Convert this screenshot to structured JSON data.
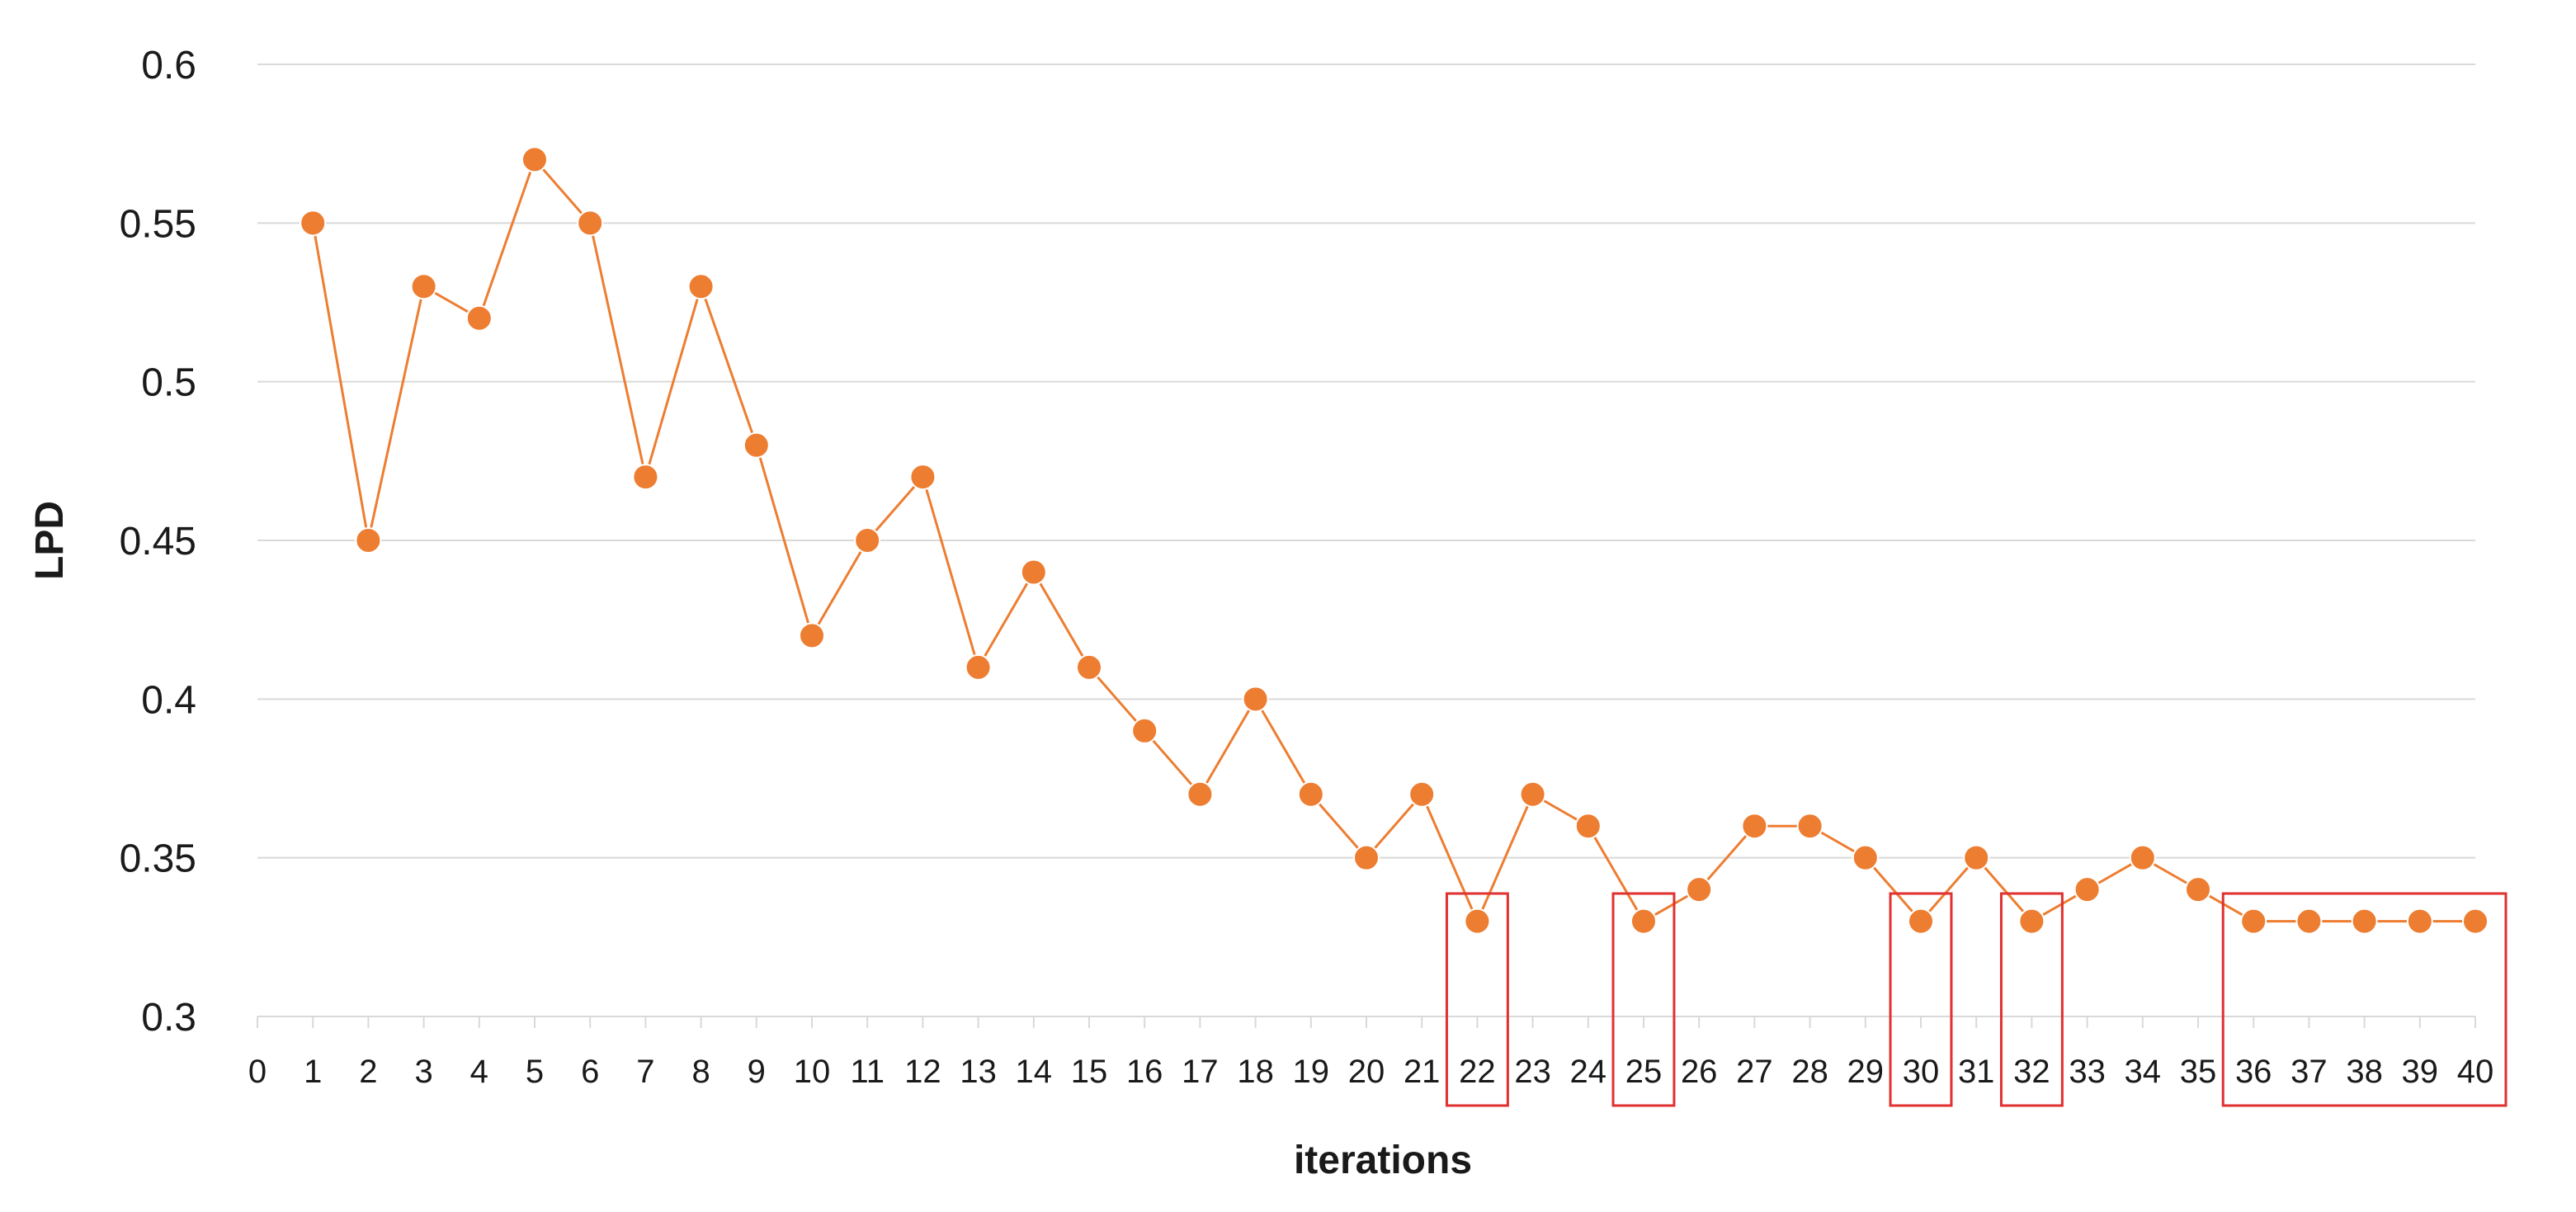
{
  "chart_data": {
    "type": "line",
    "xlabel": "iterations",
    "ylabel": "LPD",
    "xlim": [
      0,
      40
    ],
    "ylim": [
      0.3,
      0.6
    ],
    "ytick_step": 0.05,
    "y_tick_labels": [
      "0.3",
      "0.35",
      "0.4",
      "0.45",
      "0.5",
      "0.55",
      "0.6"
    ],
    "x_tick_labels": [
      "0",
      "1",
      "2",
      "3",
      "4",
      "5",
      "6",
      "7",
      "8",
      "9",
      "10",
      "11",
      "12",
      "13",
      "14",
      "15",
      "16",
      "17",
      "18",
      "19",
      "20",
      "21",
      "22",
      "23",
      "24",
      "25",
      "26",
      "27",
      "28",
      "29",
      "30",
      "31",
      "32",
      "33",
      "34",
      "35",
      "36",
      "37",
      "38",
      "39",
      "40"
    ],
    "grid": true,
    "legend": "none",
    "series": [
      {
        "color": "#ed7d31",
        "x": [
          1,
          2,
          3,
          4,
          5,
          6,
          7,
          8,
          9,
          10,
          11,
          12,
          13,
          14,
          15,
          16,
          17,
          18,
          19,
          20,
          21,
          22,
          23,
          24,
          25,
          26,
          27,
          28,
          29,
          30,
          31,
          32,
          33,
          34,
          35,
          36,
          37,
          38,
          39,
          40
        ],
        "y": [
          0.55,
          0.45,
          0.53,
          0.52,
          0.57,
          0.55,
          0.47,
          0.53,
          0.48,
          0.42,
          0.45,
          0.47,
          0.41,
          0.44,
          0.41,
          0.39,
          0.37,
          0.4,
          0.37,
          0.35,
          0.37,
          0.33,
          0.37,
          0.36,
          0.33,
          0.34,
          0.36,
          0.36,
          0.35,
          0.33,
          0.35,
          0.33,
          0.34,
          0.35,
          0.34,
          0.33,
          0.33,
          0.33,
          0.33,
          0.33
        ]
      }
    ],
    "highlight_color": "#e03030",
    "highlighted_ranges": [
      {
        "from": 22,
        "to": 22
      },
      {
        "from": 25,
        "to": 25
      },
      {
        "from": 30,
        "to": 30
      },
      {
        "from": 32,
        "to": 32
      },
      {
        "from": 36,
        "to": 40
      }
    ]
  }
}
